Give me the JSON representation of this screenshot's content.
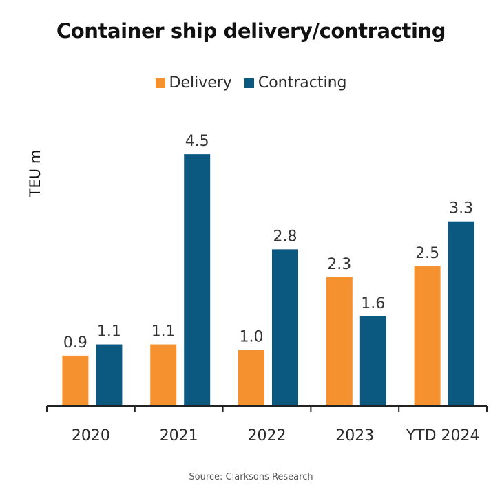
{
  "chart_data": {
    "type": "bar",
    "title": "Container ship delivery/contracting",
    "xlabel": "",
    "ylabel": "TEU m",
    "categories": [
      "2020",
      "2021",
      "2022",
      "2023",
      "YTD 2024"
    ],
    "series": [
      {
        "name": "Delivery",
        "color": "#F5922F",
        "values": [
          0.9,
          1.1,
          1.0,
          2.3,
          2.5
        ]
      },
      {
        "name": "Contracting",
        "color": "#0B5880",
        "values": [
          1.1,
          4.5,
          2.8,
          1.6,
          3.3
        ]
      }
    ],
    "ylim": [
      0,
      5
    ],
    "grid": false,
    "legend": "top-center",
    "data_labels": true,
    "source": "Source: Clarksons Research"
  }
}
